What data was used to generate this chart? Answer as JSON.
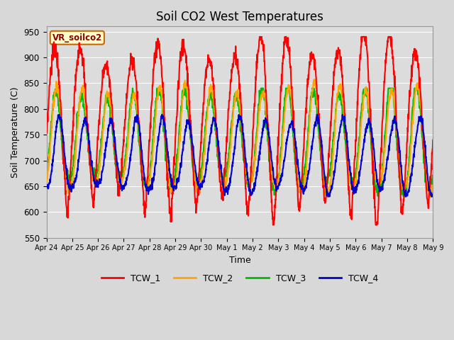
{
  "title": "Soil CO2 West Temperatures",
  "xlabel": "Time",
  "ylabel": "Soil Temperature (C)",
  "ylim": [
    550,
    960
  ],
  "yticks": [
    550,
    600,
    650,
    700,
    750,
    800,
    850,
    900,
    950
  ],
  "annotation_text": "VR_soilco2",
  "annotation_bg": "#FFFFCC",
  "annotation_border": "#CC6600",
  "series_colors": {
    "TCW_1": "#FF0000",
    "TCW_2": "#FFA500",
    "TCW_3": "#00BB00",
    "TCW_4": "#0000CC"
  },
  "xtick_labels": [
    "Apr 24",
    "Apr 25",
    "Apr 26",
    "Apr 27",
    "Apr 28",
    "Apr 29",
    "Apr 30",
    "May 1",
    "May 2",
    "May 3",
    "May 4",
    "May 5",
    "May 6",
    "May 7",
    "May 8",
    "May 9"
  ],
  "background_color": "#DCDCDC",
  "grid_color": "#FFFFFF",
  "linewidth": 1.5,
  "fig_bg": "#D8D8D8"
}
